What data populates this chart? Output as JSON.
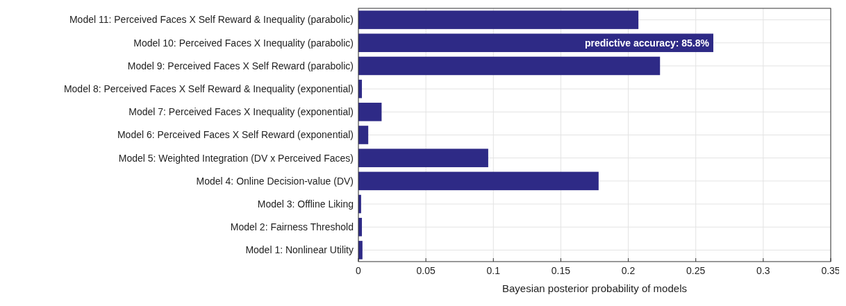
{
  "chart_data": {
    "type": "bar",
    "orientation": "horizontal",
    "xlabel": "Bayesian posterior probability of models",
    "categories": [
      "Model 11: Perceived Faces X Self Reward & Inequality (parabolic)",
      "Model 10: Perceived Faces X Inequality (parabolic)",
      "Model 9: Perceived Faces X Self Reward (parabolic)",
      "Model 8: Perceived Faces X Self Reward & Inequality (exponential)",
      "Model 7: Perceived Faces X Inequality (exponential)",
      "Model 6: Perceived Faces X Self Reward (exponential)",
      "Model 5: Weighted Integration (DV x Perceived Faces)",
      "Model 4: Online Decision-value (DV)",
      "Model 3: Offline Liking",
      "Model 2: Fairness Threshold",
      "Model 1: Nonlinear Utility"
    ],
    "values": [
      0.2075,
      0.263,
      0.2235,
      0.0026,
      0.0172,
      0.0073,
      0.0962,
      0.178,
      0.002,
      0.0026,
      0.003
    ],
    "color": "#2e2a86",
    "xlim": [
      0,
      0.35
    ],
    "xticks": [
      0,
      0.05,
      0.1,
      0.15,
      0.2,
      0.25,
      0.3,
      0.35
    ],
    "grid": true,
    "annotations": [
      {
        "text": "predictive accuracy: 85.8%",
        "x": 0.263,
        "y": "Model 10: Perceived Faces X Inequality (parabolic)"
      }
    ]
  }
}
